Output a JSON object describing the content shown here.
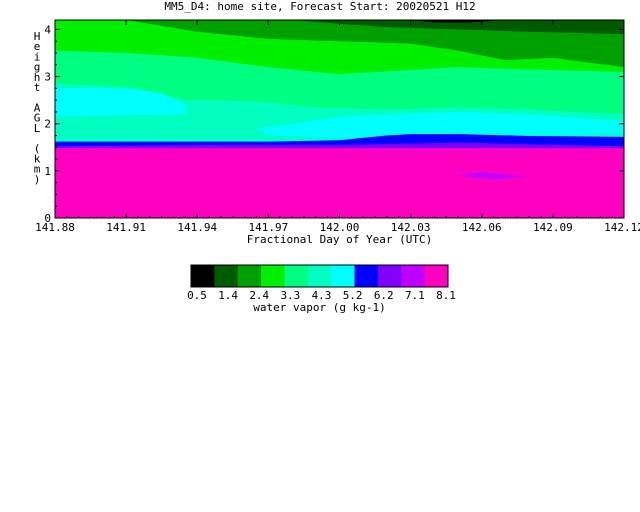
{
  "chart_data": {
    "type": "heatmap",
    "title": "MM5_D4: home site,  Forecast Start: 20020521 H12",
    "xlabel": "Fractional Day of Year (UTC)",
    "ylabel": "Height AGL (km)",
    "xlim": [
      141.88,
      142.12
    ],
    "ylim": [
      0,
      4.2
    ],
    "x_ticks": [
      "141.88",
      "141.91",
      "141.94",
      "141.97",
      "142.00",
      "142.03",
      "142.06",
      "142.09",
      "142.12"
    ],
    "y_ticks": [
      "0",
      "1",
      "2",
      "3",
      "4"
    ],
    "colorbar": {
      "label": "water vapor (g kg-1)",
      "tick_labels": [
        "0.5",
        "1.4",
        "2.4",
        "3.3",
        "4.3",
        "5.2",
        "6.2",
        "7.1",
        "8.1"
      ],
      "colors": [
        "#000000",
        "#005a00",
        "#00a000",
        "#00f000",
        "#00ff80",
        "#00ffc0",
        "#00ffff",
        "#0000ff",
        "#8000ff",
        "#c000ff",
        "#ff00c0"
      ]
    },
    "bands": [
      {
        "level": "7.1-8.1",
        "color": "#ff00c0",
        "description": "surface to ~1.5 km"
      },
      {
        "level": "5.2-6.2",
        "color": "#0000ff",
        "description": "~1.5-1.7 km"
      },
      {
        "level": "3.3-4.3",
        "color": "#00ffc0",
        "description": "~1.7-3.0 km"
      },
      {
        "level": "2.4-3.3",
        "color": "#00ff80",
        "description": "~2.8-3.6 km"
      },
      {
        "level": "1.4-2.4",
        "color": "#00f000",
        "description": "~3.6-4.1 km"
      },
      {
        "level": "0.5-1.4",
        "color": "#00a000",
        "description": "upper layer, later times"
      }
    ]
  }
}
